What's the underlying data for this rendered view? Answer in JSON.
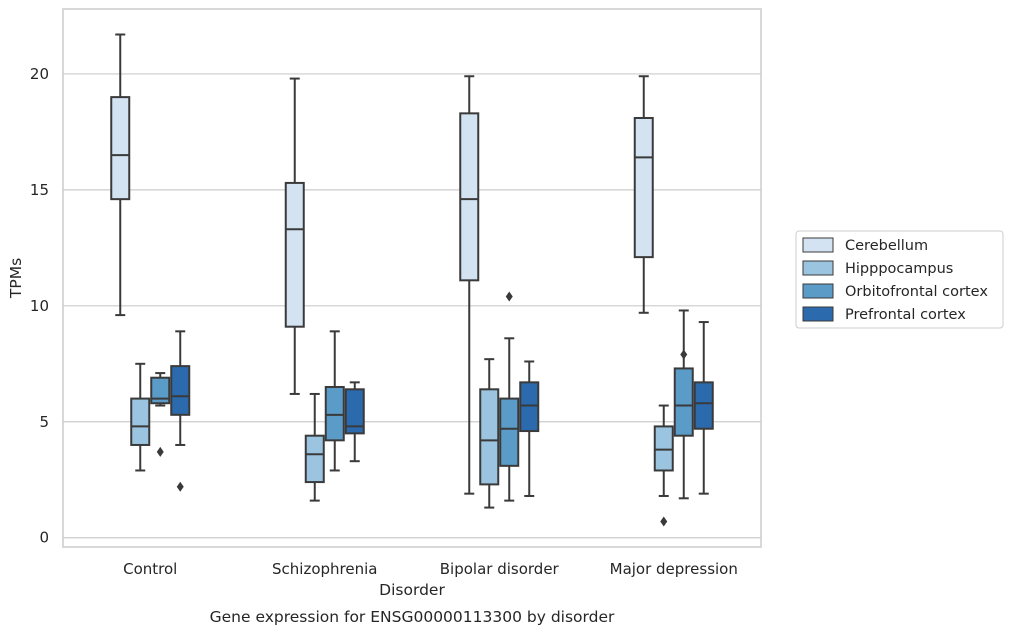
{
  "chart_data": {
    "type": "box",
    "caption": "Gene expression for ENSG00000113300 by disorder",
    "xlabel": "Disorder",
    "ylabel": "TPMs",
    "ylim": [
      -0.4,
      22.8
    ],
    "yticks": [
      0,
      5,
      10,
      15,
      20
    ],
    "grid": "horizontal",
    "legend_position": "right",
    "categories": [
      "Control",
      "Schizophrenia",
      "Bipolar disorder",
      "Major depression"
    ],
    "series": [
      {
        "name": "Cerebellum",
        "color": "#d4e3f2",
        "boxes": [
          {
            "whisker_low": 9.6,
            "q1": 14.6,
            "median": 16.5,
            "q3": 19.0,
            "whisker_high": 21.7,
            "outliers": []
          },
          {
            "whisker_low": 6.2,
            "q1": 9.1,
            "median": 13.3,
            "q3": 15.3,
            "whisker_high": 19.8,
            "outliers": []
          },
          {
            "whisker_low": 1.9,
            "q1": 11.1,
            "median": 14.6,
            "q3": 18.3,
            "whisker_high": 19.9,
            "outliers": []
          },
          {
            "whisker_low": 9.7,
            "q1": 12.1,
            "median": 16.4,
            "q3": 18.1,
            "whisker_high": 19.9,
            "outliers": []
          }
        ]
      },
      {
        "name": "Hipppocampus",
        "color": "#9ac4df",
        "boxes": [
          {
            "whisker_low": 2.9,
            "q1": 4.0,
            "median": 4.8,
            "q3": 6.0,
            "whisker_high": 7.5,
            "outliers": []
          },
          {
            "whisker_low": 1.6,
            "q1": 2.4,
            "median": 3.6,
            "q3": 4.4,
            "whisker_high": 6.2,
            "outliers": []
          },
          {
            "whisker_low": 1.3,
            "q1": 2.3,
            "median": 4.2,
            "q3": 6.4,
            "whisker_high": 7.7,
            "outliers": []
          },
          {
            "whisker_low": 1.8,
            "q1": 2.9,
            "median": 3.8,
            "q3": 4.8,
            "whisker_high": 5.7,
            "outliers": [
              0.7
            ]
          }
        ]
      },
      {
        "name": "Orbitofrontal cortex",
        "color": "#5a9bc8",
        "boxes": [
          {
            "whisker_low": 5.7,
            "q1": 5.8,
            "median": 6.0,
            "q3": 6.9,
            "whisker_high": 7.1,
            "outliers": [
              3.7
            ]
          },
          {
            "whisker_low": 2.9,
            "q1": 4.2,
            "median": 5.3,
            "q3": 6.5,
            "whisker_high": 8.9,
            "outliers": []
          },
          {
            "whisker_low": 1.6,
            "q1": 3.1,
            "median": 4.7,
            "q3": 6.0,
            "whisker_high": 8.6,
            "outliers": [
              10.4
            ]
          },
          {
            "whisker_low": 1.7,
            "q1": 4.4,
            "median": 5.7,
            "q3": 7.3,
            "whisker_high": 9.8,
            "outliers": [
              7.9
            ]
          }
        ]
      },
      {
        "name": "Prefrontal cortex",
        "color": "#2a6aad",
        "boxes": [
          {
            "whisker_low": 4.0,
            "q1": 5.3,
            "median": 6.1,
            "q3": 7.4,
            "whisker_high": 8.9,
            "outliers": [
              2.2
            ]
          },
          {
            "whisker_low": 3.3,
            "q1": 4.5,
            "median": 4.8,
            "q3": 6.4,
            "whisker_high": 6.7,
            "outliers": []
          },
          {
            "whisker_low": 1.8,
            "q1": 4.6,
            "median": 5.7,
            "q3": 6.7,
            "whisker_high": 7.6,
            "outliers": []
          },
          {
            "whisker_low": 1.9,
            "q1": 4.7,
            "median": 5.8,
            "q3": 6.7,
            "whisker_high": 9.3,
            "outliers": []
          }
        ]
      }
    ]
  },
  "colors": {
    "box_edge": "#3a3a3a",
    "grid": "#cccccc",
    "frame": "#cccccc"
  }
}
